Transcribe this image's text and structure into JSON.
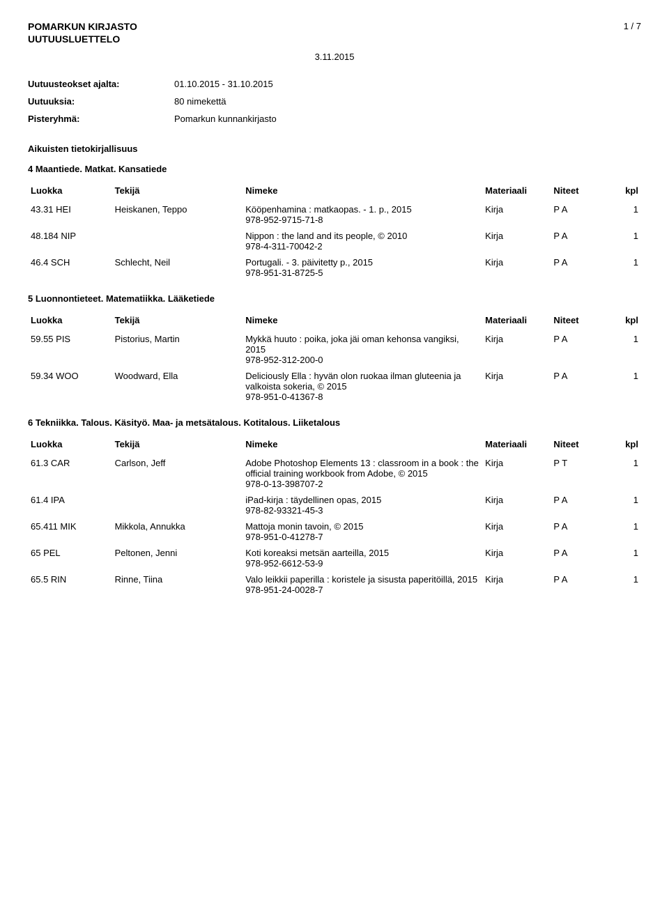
{
  "header": {
    "title": "POMARKUN KIRJASTO",
    "subtitle": "UUTUUSLUETTELO",
    "page": "1 / 7",
    "date": "3.11.2015"
  },
  "meta": {
    "label1": "Uutuusteokset ajalta:",
    "value1": "01.10.2015 - 31.10.2015",
    "label2": "Uutuuksia:",
    "value2": "80 nimekettä",
    "label3": "Pisteryhmä:",
    "value3": "Pomarkun kunnankirjasto"
  },
  "section_title": "Aikuisten tietokirjallisuus",
  "headers": {
    "luokka": "Luokka",
    "tekija": "Tekijä",
    "nimeke": "Nimeke",
    "materiaali": "Materiaali",
    "niteet": "Niteet",
    "kpl": "kpl"
  },
  "groups": [
    {
      "title": "4 Maantiede. Matkat. Kansatiede",
      "rows": [
        {
          "luokka": "43.31 HEI",
          "tekija": "Heiskanen, Teppo",
          "nimeke": "Kööpenhamina : matkaopas. - 1. p., 2015\n978-952-9715-71-8",
          "mat": "Kirja",
          "niteet": "P A",
          "kpl": "1"
        },
        {
          "luokka": "48.184 NIP",
          "tekija": "",
          "nimeke": "Nippon : the land and its people, © 2010\n978-4-311-70042-2",
          "mat": "Kirja",
          "niteet": "P A",
          "kpl": "1"
        },
        {
          "luokka": "46.4 SCH",
          "tekija": "Schlecht, Neil",
          "nimeke": "Portugali. - 3. päivitetty p., 2015\n978-951-31-8725-5",
          "mat": "Kirja",
          "niteet": "P A",
          "kpl": "1"
        }
      ]
    },
    {
      "title": "5 Luonnontieteet. Matematiikka. Lääketiede",
      "rows": [
        {
          "luokka": "59.55 PIS",
          "tekija": "Pistorius, Martin",
          "nimeke": "Mykkä huuto : poika, joka jäi oman kehonsa vangiksi, 2015\n978-952-312-200-0",
          "mat": "Kirja",
          "niteet": "P A",
          "kpl": "1"
        },
        {
          "luokka": "59.34 WOO",
          "tekija": "Woodward, Ella",
          "nimeke": "Deliciously Ella : hyvän olon ruokaa ilman gluteenia ja valkoista sokeria, © 2015\n978-951-0-41367-8",
          "mat": "Kirja",
          "niteet": "P A",
          "kpl": "1"
        }
      ]
    },
    {
      "title": "6 Tekniikka. Talous. Käsityö. Maa- ja metsätalous. Kotitalous. Liiketalous",
      "rows": [
        {
          "luokka": "61.3 CAR",
          "tekija": "Carlson, Jeff",
          "nimeke": "Adobe Photoshop Elements 13 : classroom in a book : the official training workbook from Adobe, © 2015\n978-0-13-398707-2",
          "mat": "Kirja",
          "niteet": "P T",
          "kpl": "1"
        },
        {
          "luokka": "61.4 IPA",
          "tekija": "",
          "nimeke": "iPad-kirja : täydellinen opas, 2015\n978-82-93321-45-3",
          "mat": "Kirja",
          "niteet": "P A",
          "kpl": "1"
        },
        {
          "luokka": "65.411 MIK",
          "tekija": "Mikkola, Annukka",
          "nimeke": "Mattoja monin tavoin, © 2015\n978-951-0-41278-7",
          "mat": "Kirja",
          "niteet": "P A",
          "kpl": "1"
        },
        {
          "luokka": "65 PEL",
          "tekija": "Peltonen, Jenni",
          "nimeke": "Koti koreaksi metsän aarteilla, 2015\n978-952-6612-53-9",
          "mat": "Kirja",
          "niteet": "P A",
          "kpl": "1"
        },
        {
          "luokka": "65.5 RIN",
          "tekija": "Rinne, Tiina",
          "nimeke": "Valo leikkii paperilla : koristele ja sisusta paperitöillä, 2015\n978-951-24-0028-7",
          "mat": "Kirja",
          "niteet": "P A",
          "kpl": "1"
        }
      ]
    }
  ]
}
